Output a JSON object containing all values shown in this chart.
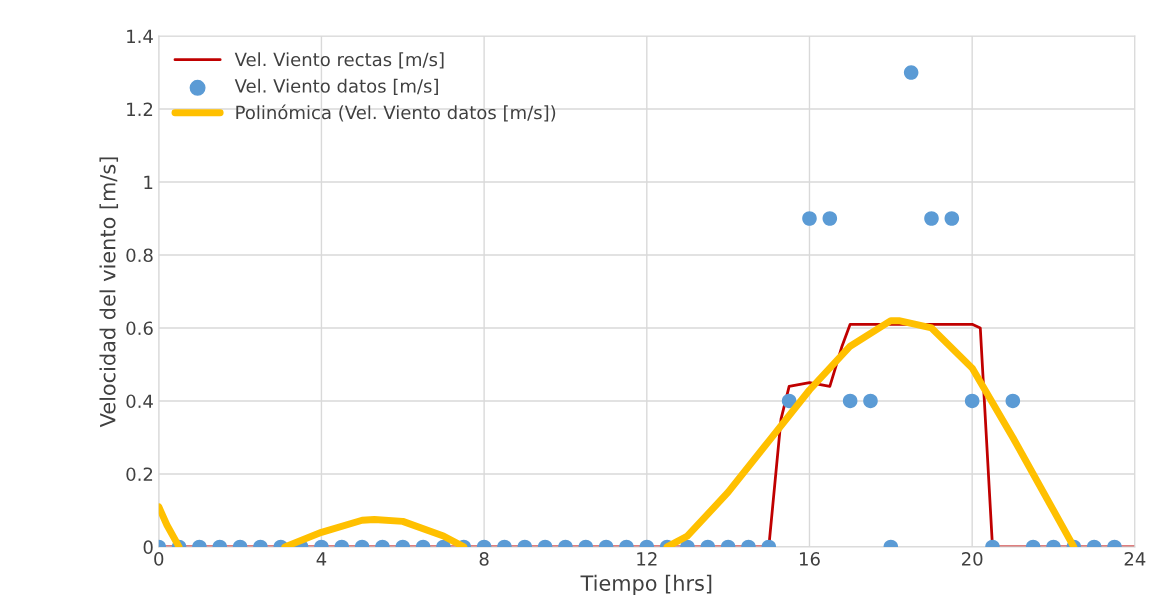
{
  "chart_data": {
    "type": "line",
    "xlabel": "Tiempo [hrs]",
    "ylabel": "Velocidad del viento [m/s]",
    "xlim": [
      0,
      24
    ],
    "xticks": [
      0,
      4,
      8,
      12,
      16,
      20,
      24
    ],
    "ylim": [
      0,
      1.4
    ],
    "yticks": [
      0,
      0.2,
      0.4,
      0.6,
      0.8,
      1,
      1.2,
      1.4
    ],
    "grid": true,
    "legend": "top left",
    "series": [
      {
        "name": "Vel. Viento rectas [m/s]",
        "color": "#c00000",
        "line_style": "solid",
        "marker": "none",
        "x": [
          0,
          15,
          15.3,
          15.5,
          16,
          16.5,
          16.8,
          17,
          17.5,
          18,
          19,
          20,
          20.2,
          20.5,
          21,
          24
        ],
        "values": [
          0,
          0,
          0.35,
          0.44,
          0.45,
          0.44,
          0.55,
          0.61,
          0.61,
          0.61,
          0.61,
          0.61,
          0.6,
          0,
          0,
          0
        ]
      },
      {
        "name": "Vel. Viento datos [m/s]",
        "type": "scatter",
        "color": "#5b9bd5",
        "marker": "circle",
        "x": [
          0,
          0.5,
          1,
          1.5,
          2,
          2.5,
          3,
          3.5,
          4,
          4.5,
          5,
          5.5,
          6,
          6.5,
          7,
          7.5,
          8,
          8.5,
          9,
          9.5,
          10,
          10.5,
          11,
          11.5,
          12,
          12.5,
          13,
          13.5,
          14,
          14.5,
          15,
          15.5,
          16,
          16.5,
          17,
          17.5,
          18,
          18.5,
          19,
          19.5,
          20,
          20.5,
          21,
          21.5,
          22,
          22.5,
          23,
          23.5
        ],
        "values": [
          0,
          0,
          0,
          0,
          0,
          0,
          0,
          0,
          0,
          0,
          0,
          0,
          0,
          0,
          0,
          0,
          0,
          0,
          0,
          0,
          0,
          0,
          0,
          0,
          0,
          0,
          0,
          0,
          0,
          0,
          0,
          0.4,
          0.9,
          0.9,
          0.4,
          0.4,
          0,
          1.3,
          0.9,
          0.9,
          0.4,
          0,
          0.4,
          0,
          0,
          0,
          0,
          0
        ]
      },
      {
        "name": "Polinómica (Vel. Viento datos [m/s])",
        "color": "#ffc000",
        "line_style": "solid",
        "marker": "none",
        "x": [
          0,
          0.2,
          0.5,
          0.6,
          3.1,
          4,
          5,
          5.3,
          6,
          7,
          7.5,
          7.6,
          12.5,
          13,
          14,
          15,
          16,
          17,
          18,
          18.2,
          19,
          20,
          21,
          22,
          22.5
        ],
        "values": [
          0.11,
          0.06,
          0,
          null,
          0,
          0.04,
          0.073,
          0.075,
          0.07,
          0.03,
          0,
          null,
          0,
          0.03,
          0.15,
          0.29,
          0.43,
          0.55,
          0.62,
          0.62,
          0.6,
          0.49,
          0.3,
          0.1,
          0
        ]
      }
    ]
  }
}
